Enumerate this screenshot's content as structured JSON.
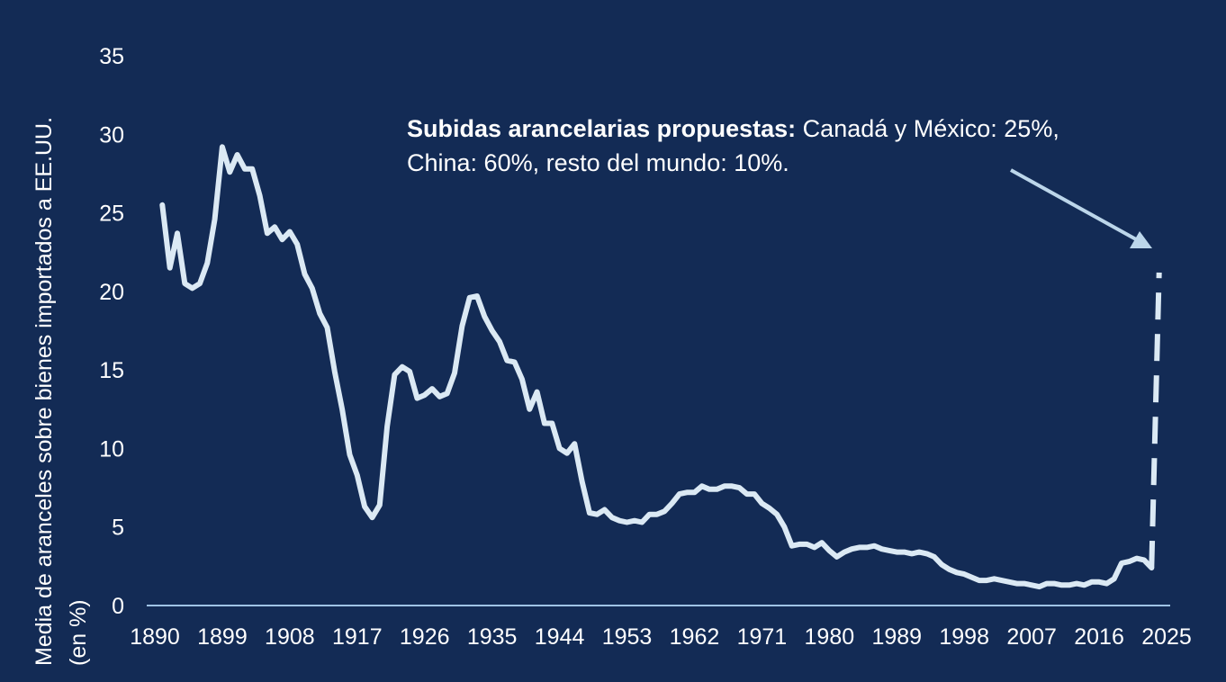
{
  "chart_data": {
    "type": "line",
    "ylabel_line1": "Media de aranceles sobre bienes importados a EE.UU.",
    "ylabel_line2": "(en %)",
    "ylim": [
      0,
      35
    ],
    "xlim": [
      1890,
      2025
    ],
    "y_ticks": [
      "0",
      "5",
      "10",
      "15",
      "20",
      "25",
      "30",
      "35"
    ],
    "x_ticks": [
      "1890",
      "1899",
      "1908",
      "1917",
      "1926",
      "1935",
      "1944",
      "1953",
      "1962",
      "1971",
      "1980",
      "1989",
      "1998",
      "2007",
      "2016",
      "2025"
    ],
    "grid": false,
    "series": [
      {
        "style": "solid",
        "x": [
          1891,
          1892,
          1893,
          1894,
          1895,
          1896,
          1897,
          1898,
          1899,
          1900,
          1901,
          1902,
          1903,
          1904,
          1905,
          1906,
          1907,
          1908,
          1909,
          1910,
          1911,
          1912,
          1913,
          1914,
          1915,
          1916,
          1917,
          1918,
          1919,
          1920,
          1921,
          1922,
          1923,
          1924,
          1925,
          1926,
          1927,
          1928,
          1929,
          1930,
          1931,
          1932,
          1933,
          1934,
          1935,
          1936,
          1937,
          1938,
          1939,
          1940,
          1941,
          1942,
          1943,
          1944,
          1945,
          1946,
          1947,
          1948,
          1949,
          1950,
          1951,
          1952,
          1953,
          1954,
          1955,
          1956,
          1957,
          1958,
          1959,
          1960,
          1961,
          1962,
          1963,
          1964,
          1965,
          1966,
          1967,
          1968,
          1969,
          1970,
          1971,
          1972,
          1973,
          1974,
          1975,
          1976,
          1977,
          1978,
          1979,
          1980,
          1981,
          1982,
          1983,
          1984,
          1985,
          1986,
          1987,
          1988,
          1989,
          1990,
          1991,
          1992,
          1993,
          1994,
          1995,
          1996,
          1997,
          1998,
          1999,
          2000,
          2001,
          2002,
          2003,
          2004,
          2005,
          2006,
          2007,
          2008,
          2009,
          2010,
          2011,
          2012,
          2013,
          2014,
          2015,
          2016,
          2017,
          2018,
          2019,
          2020,
          2021,
          2022,
          2023
        ],
        "values": [
          25.5,
          21.5,
          23.7,
          20.5,
          20.2,
          20.5,
          21.8,
          24.6,
          29.2,
          27.6,
          28.7,
          27.8,
          27.8,
          26.1,
          23.7,
          24.1,
          23.3,
          23.8,
          23.0,
          21.1,
          20.2,
          18.6,
          17.7,
          14.9,
          12.5,
          9.6,
          8.3,
          6.3,
          5.6,
          6.4,
          11.4,
          14.7,
          15.2,
          14.9,
          13.2,
          13.4,
          13.8,
          13.3,
          13.5,
          14.8,
          17.8,
          19.6,
          19.7,
          18.4,
          17.5,
          16.8,
          15.6,
          15.5,
          14.4,
          12.5,
          13.6,
          11.6,
          11.6,
          10.0,
          9.7,
          10.3,
          7.9,
          5.9,
          5.8,
          6.1,
          5.6,
          5.4,
          5.3,
          5.4,
          5.3,
          5.8,
          5.8,
          6.0,
          6.5,
          7.1,
          7.2,
          7.2,
          7.6,
          7.4,
          7.4,
          7.6,
          7.6,
          7.5,
          7.1,
          7.1,
          6.5,
          6.2,
          5.8,
          5.0,
          3.8,
          3.9,
          3.9,
          3.7,
          4.0,
          3.5,
          3.1,
          3.4,
          3.6,
          3.7,
          3.7,
          3.8,
          3.6,
          3.5,
          3.4,
          3.4,
          3.3,
          3.4,
          3.3,
          3.1,
          2.6,
          2.3,
          2.1,
          2.0,
          1.8,
          1.6,
          1.6,
          1.7,
          1.6,
          1.5,
          1.4,
          1.4,
          1.3,
          1.2,
          1.4,
          1.4,
          1.3,
          1.3,
          1.4,
          1.3,
          1.5,
          1.5,
          1.4,
          1.7,
          2.7,
          2.8,
          3.0,
          2.9,
          2.4
        ]
      },
      {
        "style": "dashed",
        "x": [
          2023,
          2024
        ],
        "values": [
          2.4,
          21.2
        ]
      }
    ],
    "annotation": {
      "bold": "Subidas arancelarias propuestas:",
      "line1_rest": " Canadá y México: 25%,",
      "line2": "China: 60%, resto del mundo: 10%."
    },
    "colors": {
      "background": "#132b55",
      "line": "#dbe9f4",
      "axis": "#9fc4e6",
      "arrow": "#bcd6ea",
      "text": "#ffffff"
    }
  }
}
